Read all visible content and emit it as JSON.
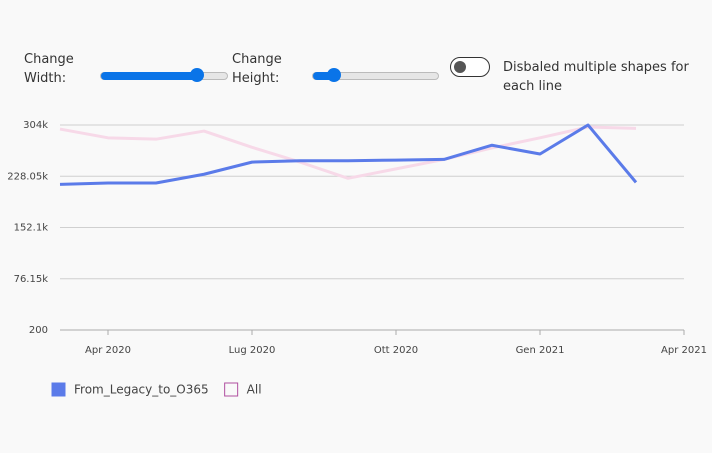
{
  "controls": {
    "width": {
      "label": "Change Width:",
      "value": 0.76
    },
    "height": {
      "label": "Change Height:",
      "value": 0.17
    },
    "toggle": {
      "label": "Disbaled multiple shapes for each line",
      "on": false
    }
  },
  "chart_data": {
    "type": "line",
    "x": [
      "2020-03",
      "2020-04",
      "2020-05",
      "2020-06",
      "2020-07",
      "2020-08",
      "2020-09",
      "2020-10",
      "2020-11",
      "2020-12",
      "2021-01",
      "2021-02",
      "2021-03"
    ],
    "series": [
      {
        "name": "All",
        "color": "#f7d9e8",
        "legend_color": "#b04fa0",
        "values": [
          298000,
          285000,
          283000,
          295000,
          271000,
          249000,
          225000,
          239000,
          253000,
          270000,
          285000,
          301000,
          299000
        ]
      },
      {
        "name": "From_Legacy_to_O365",
        "color": "#5b7be9",
        "values": [
          216000,
          218000,
          218000,
          231000,
          249000,
          251000,
          251000,
          252000,
          253000,
          274000,
          261000,
          304000,
          219000
        ]
      }
    ],
    "ylim": [
      200,
      304000
    ],
    "yticks": [
      200,
      {
        "value": 76150,
        "label": "76.15k"
      },
      {
        "value": 152100,
        "label": "152.1k"
      },
      {
        "value": 228050,
        "label": "228.05k"
      },
      {
        "value": 304000,
        "label": "304k"
      }
    ],
    "xticks": [
      {
        "value": "2020-04",
        "label": "Apr 2020"
      },
      {
        "value": "2020-07",
        "label": "Lug 2020"
      },
      {
        "value": "2020-10",
        "label": "Ott 2020"
      },
      {
        "value": "2021-01",
        "label": "Gen 2021"
      },
      {
        "value": "2021-04",
        "label": "Apr 2021"
      }
    ],
    "grid": true
  }
}
